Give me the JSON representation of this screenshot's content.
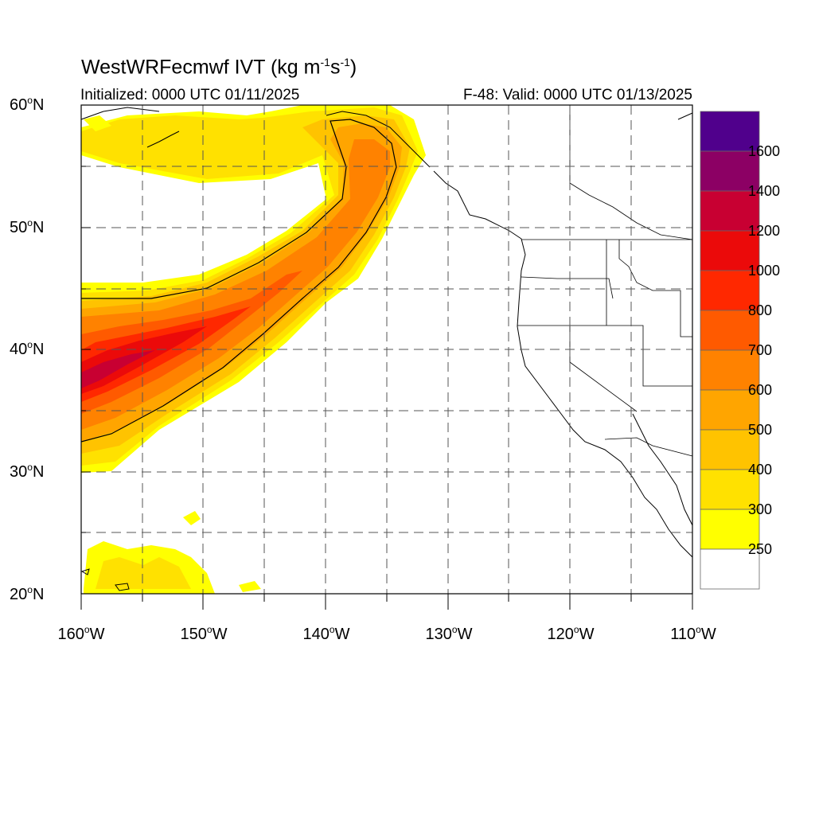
{
  "title": {
    "main": "WestWRFecmwf IVT (kg m",
    "sup1": "-1",
    "mid": "s",
    "sup2": "-1",
    "end": ")"
  },
  "subtitle": {
    "left": "Initialized: 0000 UTC 01/11/2025",
    "right": "F-48: Valid: 0000 UTC 01/13/2025"
  },
  "map": {
    "lon_range": [
      -160,
      -110
    ],
    "lat_range": [
      20,
      60
    ],
    "lat_labels": [
      {
        "text": "60",
        "unit": "N"
      },
      {
        "text": "50",
        "unit": "N"
      },
      {
        "text": "40",
        "unit": "N"
      },
      {
        "text": "30",
        "unit": "N"
      },
      {
        "text": "20",
        "unit": "N"
      }
    ],
    "lon_labels": [
      {
        "text": "160",
        "unit": "W"
      },
      {
        "text": "150",
        "unit": "W"
      },
      {
        "text": "140",
        "unit": "W"
      },
      {
        "text": "130",
        "unit": "W"
      },
      {
        "text": "120",
        "unit": "W"
      },
      {
        "text": "110",
        "unit": "W"
      }
    ],
    "degree_symbol": "o"
  },
  "colorbar": {
    "labels": [
      "1600",
      "1400",
      "1200",
      "1000",
      "800",
      "700",
      "600",
      "500",
      "400",
      "300",
      "250"
    ],
    "colors": [
      "#50008c",
      "#8c0064",
      "#c80032",
      "#eb0a0a",
      "#ff2800",
      "#ff5a00",
      "#ff8200",
      "#ffa500",
      "#ffc300",
      "#ffe100",
      "#ffff00",
      "#ffffff"
    ]
  }
}
